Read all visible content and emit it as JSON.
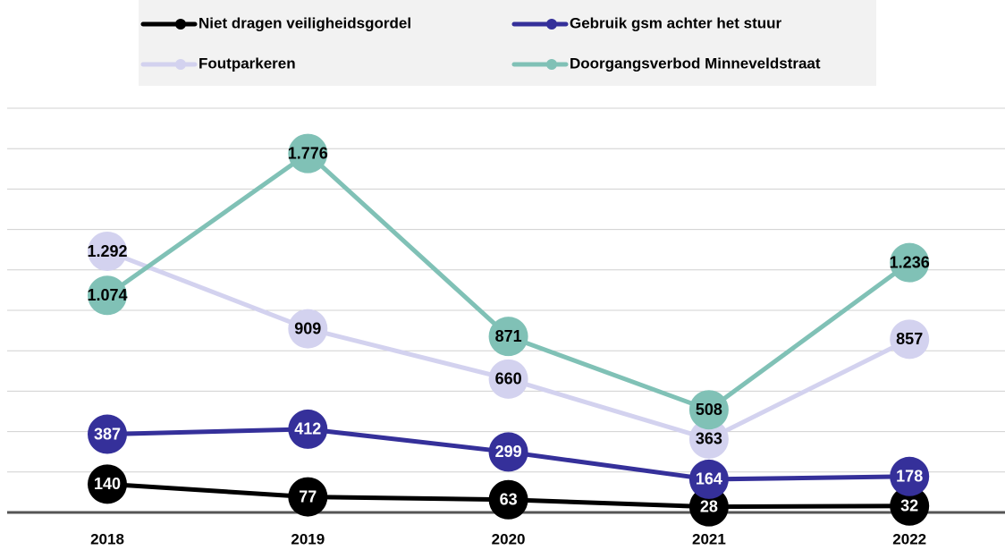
{
  "chart_data": {
    "type": "line",
    "categories": [
      "2018",
      "2019",
      "2020",
      "2021",
      "2022"
    ],
    "series": [
      {
        "name": "Niet dragen veiligheidsgordel",
        "color": "#000000",
        "label_color": "#ffffff",
        "values": [
          140,
          77,
          63,
          28,
          32
        ]
      },
      {
        "name": "Gebruik gsm achter het stuur",
        "color": "#35309a",
        "label_color": "#ffffff",
        "values": [
          387,
          412,
          299,
          164,
          178
        ]
      },
      {
        "name": "Foutparkeren",
        "color": "#d3d2ef",
        "label_color": "#000000",
        "values": [
          1292,
          909,
          660,
          363,
          857
        ],
        "value_labels": [
          "1.292",
          "909",
          "660",
          "363",
          "857"
        ]
      },
      {
        "name": "Doorgangsverbod Minneveldstraat",
        "color": "#80c1b6",
        "label_color": "#000000",
        "values": [
          1074,
          1776,
          871,
          508,
          1236
        ],
        "value_labels": [
          "1.074",
          "1.776",
          "871",
          "508",
          "1.236"
        ]
      }
    ],
    "ylim": [
      0,
      2000
    ],
    "yticks": [
      0,
      200,
      400,
      600,
      800,
      1000,
      1200,
      1400,
      1600,
      1800,
      2000
    ],
    "grid": true
  }
}
